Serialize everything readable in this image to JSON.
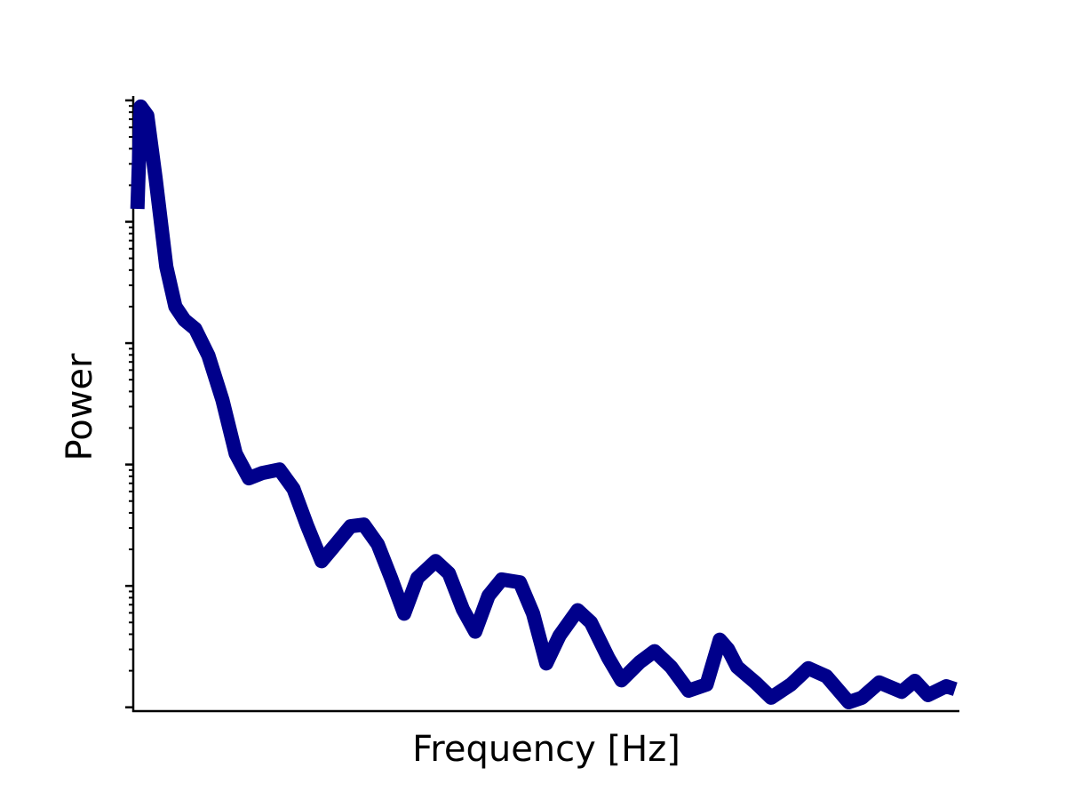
{
  "chart_data": {
    "type": "line",
    "x_label": "Frequency [Hz]",
    "y_label": "Power",
    "x": [
      0.5,
      0.9,
      1.7,
      2.7,
      4.0,
      5.1,
      6.2,
      7.5,
      9.1,
      10.8,
      12.4,
      14.0,
      15.6,
      17.7,
      19.4,
      21.0,
      22.8,
      24.5,
      26.3,
      27.9,
      29.6,
      31.2,
      32.8,
      34.4,
      36.6,
      38.2,
      39.9,
      41.4,
      43.0,
      44.6,
      46.8,
      48.4,
      50.0,
      51.6,
      53.8,
      55.4,
      57.5,
      59.1,
      61.3,
      63.1,
      65.1,
      67.2,
      69.4,
      71.0,
      72.0,
      73.1,
      75.3,
      77.2,
      79.6,
      81.7,
      83.9,
      86.6,
      88.2,
      90.3,
      93.0,
      94.6,
      96.2,
      98.4,
      99.5
    ],
    "series": [
      {
        "color": "#00008b",
        "values": [
          1277,
          8900,
          7500,
          2300,
          427,
          200,
          155,
          131,
          79,
          34,
          12.3,
          7.7,
          8.5,
          9.1,
          6.3,
          3.2,
          1.6,
          2.2,
          3.1,
          3.2,
          2.2,
          1.16,
          0.59,
          1.16,
          1.6,
          1.27,
          0.64,
          0.42,
          0.83,
          1.13,
          1.07,
          0.59,
          0.23,
          0.39,
          0.63,
          0.5,
          0.255,
          0.167,
          0.235,
          0.29,
          0.215,
          0.137,
          0.154,
          0.36,
          0.3,
          0.215,
          0.16,
          0.12,
          0.154,
          0.21,
          0.18,
          0.11,
          0.12,
          0.16,
          0.134,
          0.165,
          0.126,
          0.149,
          0.141
        ]
      }
    ],
    "xlim": [
      0,
      100
    ],
    "ylim": [
      0.093,
      10870
    ],
    "log_y": true,
    "yticks": [
      0.1,
      1,
      10,
      100,
      1000,
      10000
    ],
    "yminorticks": [
      0.2,
      0.3,
      0.4,
      0.5,
      0.6,
      0.7,
      0.8,
      0.9,
      2,
      3,
      4,
      5,
      6,
      7,
      8,
      9,
      20,
      30,
      40,
      50,
      60,
      70,
      80,
      90,
      200,
      300,
      400,
      500,
      600,
      700,
      800,
      900,
      2000,
      3000,
      4000,
      5000,
      6000,
      7000,
      8000,
      9000
    ]
  }
}
